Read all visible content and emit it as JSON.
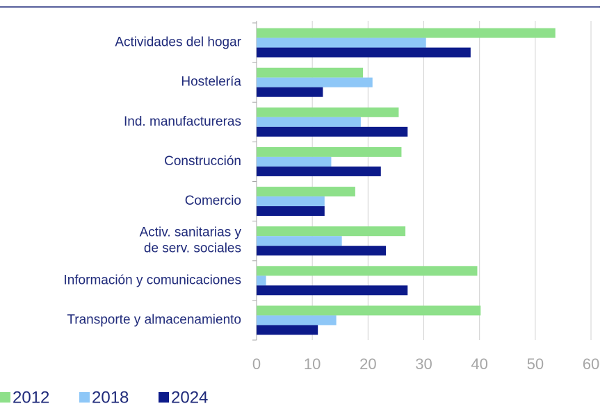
{
  "chart_data": {
    "type": "hbar",
    "categories": [
      "Actividades del hogar",
      "Hostelería",
      "Ind. manufactureras",
      "Construcción",
      "Comercio",
      [
        "Activ. sanitarias y",
        "de serv. sociales"
      ],
      "Información y comunicaciones",
      "Transporte y almacenamiento"
    ],
    "series": [
      {
        "name": "2012",
        "color": "#8ee08a",
        "values": [
          53.6,
          19.1,
          25.5,
          26,
          17.7,
          26.7,
          39.6,
          40.2
        ]
      },
      {
        "name": "2018",
        "color": "#8ec7f7",
        "values": [
          30.4,
          20.8,
          18.7,
          13.4,
          12.2,
          15.3,
          1.7,
          14.3
        ]
      },
      {
        "name": "2024",
        "color": "#0c1a8a",
        "values": [
          38.4,
          11.9,
          27.1,
          22.3,
          12.2,
          23.2,
          27.1,
          11
        ]
      }
    ],
    "xlim": [
      0,
      60
    ],
    "xticks": [
      0,
      10,
      20,
      30,
      40,
      50,
      60
    ],
    "grid": true,
    "legend": "bottom"
  }
}
